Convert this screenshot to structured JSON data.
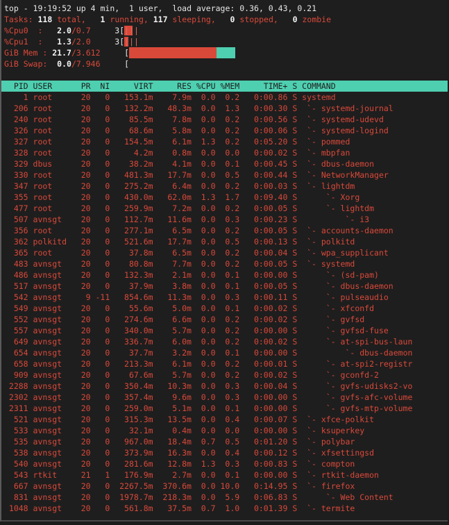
{
  "summary": {
    "uptime_line": "top - 19:19:52 up 4 min,  1 user,  load average: 0.36, 0.43, 0.21",
    "tasks": {
      "label": "Tasks:",
      "total": "118",
      "total_label": "total,",
      "running": "1",
      "running_label": "running,",
      "sleeping": "117",
      "sleeping_label": "sleeping,",
      "stopped": "0",
      "stopped_label": "stopped,",
      "zombie": "0",
      "zombie_label": "zombie"
    },
    "cpu0": {
      "label": "%Cpu0  :",
      "user": "2.0",
      "sys": "/0.7",
      "bar_prefix": "3[",
      "bar_text": "|||"
    },
    "cpu1": {
      "label": "%Cpu1  :",
      "user": "1.3",
      "sys": "/2.0",
      "bar_prefix": "3[",
      "bar_text": "|||"
    },
    "mem": {
      "label": "GiB Mem :",
      "used": "21.7",
      "total": "/3.612",
      "bar_prefix": "[",
      "used_pct": 82,
      "buffers_pct": 18
    },
    "swap": {
      "label": "GiB Swap:",
      "used": "0.0",
      "total": "/7.946",
      "bar_prefix": "["
    }
  },
  "colors": {
    "accent": "#4ecfb0",
    "text_red": "#d9493a",
    "background": "#1e1e1e"
  },
  "columns": [
    "PID",
    "USER",
    "PR",
    "NI",
    "VIRT",
    "RES",
    "%CPU",
    "%MEM",
    "TIME+",
    "S",
    "COMMAND"
  ],
  "processes": [
    [
      "1",
      "root",
      "20",
      "0",
      "153.1m",
      "7.9m",
      "0.0",
      "0.2",
      "0:00.86",
      "S",
      "systemd",
      0
    ],
    [
      "206",
      "root",
      "20",
      "0",
      "132.2m",
      "48.3m",
      "0.0",
      "1.3",
      "0:00.30",
      "S",
      "`- systemd-journal",
      1
    ],
    [
      "240",
      "root",
      "20",
      "0",
      "85.5m",
      "7.8m",
      "0.0",
      "0.2",
      "0:00.56",
      "S",
      "`- systemd-udevd",
      1
    ],
    [
      "326",
      "root",
      "20",
      "0",
      "68.6m",
      "5.8m",
      "0.0",
      "0.2",
      "0:00.06",
      "S",
      "`- systemd-logind",
      1
    ],
    [
      "327",
      "root",
      "20",
      "0",
      "154.5m",
      "6.1m",
      "1.3",
      "0.2",
      "0:05.20",
      "S",
      "`- pommed",
      1
    ],
    [
      "328",
      "root",
      "20",
      "0",
      "4.2m",
      "0.8m",
      "0.0",
      "0.0",
      "0:00.02",
      "S",
      "`- mbpfan",
      1
    ],
    [
      "329",
      "dbus",
      "20",
      "0",
      "38.2m",
      "4.1m",
      "0.0",
      "0.1",
      "0:00.45",
      "S",
      "`- dbus-daemon",
      1
    ],
    [
      "330",
      "root",
      "20",
      "0",
      "481.3m",
      "17.7m",
      "0.0",
      "0.5",
      "0:00.44",
      "S",
      "`- NetworkManager",
      1
    ],
    [
      "347",
      "root",
      "20",
      "0",
      "275.2m",
      "6.4m",
      "0.0",
      "0.2",
      "0:00.03",
      "S",
      "`- lightdm",
      1
    ],
    [
      "355",
      "root",
      "20",
      "0",
      "430.0m",
      "62.0m",
      "1.3",
      "1.7",
      "0:09.40",
      "S",
      "`- Xorg",
      2
    ],
    [
      "477",
      "root",
      "20",
      "0",
      "259.9m",
      "7.2m",
      "0.0",
      "0.2",
      "0:00.05",
      "S",
      "`- lightdm",
      2
    ],
    [
      "507",
      "avnsgt",
      "20",
      "0",
      "112.7m",
      "11.6m",
      "0.0",
      "0.3",
      "0:00.23",
      "S",
      "`- i3",
      3
    ],
    [
      "356",
      "root",
      "20",
      "0",
      "277.1m",
      "6.5m",
      "0.0",
      "0.2",
      "0:00.05",
      "S",
      "`- accounts-daemon",
      1
    ],
    [
      "362",
      "polkitd",
      "20",
      "0",
      "521.6m",
      "17.7m",
      "0.0",
      "0.5",
      "0:00.13",
      "S",
      "`- polkitd",
      1
    ],
    [
      "365",
      "root",
      "20",
      "0",
      "37.8m",
      "6.5m",
      "0.0",
      "0.2",
      "0:00.04",
      "S",
      "`- wpa_supplicant",
      1
    ],
    [
      "483",
      "avnsgt",
      "20",
      "0",
      "80.8m",
      "7.7m",
      "0.0",
      "0.2",
      "0:00.05",
      "S",
      "`- systemd",
      1
    ],
    [
      "486",
      "avnsgt",
      "20",
      "0",
      "132.3m",
      "2.1m",
      "0.0",
      "0.1",
      "0:00.00",
      "S",
      "`- (sd-pam)",
      2
    ],
    [
      "517",
      "avnsgt",
      "20",
      "0",
      "37.9m",
      "3.8m",
      "0.0",
      "0.1",
      "0:00.05",
      "S",
      "`- dbus-daemon",
      2
    ],
    [
      "542",
      "avnsgt",
      "9",
      "-11",
      "854.6m",
      "11.3m",
      "0.0",
      "0.3",
      "0:00.11",
      "S",
      "`- pulseaudio",
      2
    ],
    [
      "549",
      "avnsgt",
      "20",
      "0",
      "55.6m",
      "5.0m",
      "0.0",
      "0.1",
      "0:00.02",
      "S",
      "`- xfconfd",
      2
    ],
    [
      "552",
      "avnsgt",
      "20",
      "0",
      "274.6m",
      "6.6m",
      "0.0",
      "0.2",
      "0:00.02",
      "S",
      "`- gvfsd",
      2
    ],
    [
      "557",
      "avnsgt",
      "20",
      "0",
      "340.0m",
      "5.7m",
      "0.0",
      "0.2",
      "0:00.00",
      "S",
      "`- gvfsd-fuse",
      2
    ],
    [
      "649",
      "avnsgt",
      "20",
      "0",
      "336.7m",
      "6.0m",
      "0.0",
      "0.2",
      "0:00.02",
      "S",
      "`- at-spi-bus-laun",
      2
    ],
    [
      "654",
      "avnsgt",
      "20",
      "0",
      "37.7m",
      "3.2m",
      "0.0",
      "0.1",
      "0:00.00",
      "S",
      "`- dbus-daemon",
      3
    ],
    [
      "658",
      "avnsgt",
      "20",
      "0",
      "213.3m",
      "6.1m",
      "0.0",
      "0.2",
      "0:00.01",
      "S",
      "`- at-spi2-registr",
      2
    ],
    [
      "909",
      "avnsgt",
      "20",
      "0",
      "67.6m",
      "5.7m",
      "0.0",
      "0.2",
      "0:00.02",
      "S",
      "`- gconfd-2",
      2
    ],
    [
      "2288",
      "avnsgt",
      "20",
      "0",
      "350.4m",
      "10.3m",
      "0.0",
      "0.3",
      "0:00.04",
      "S",
      "`- gvfs-udisks2-vo",
      2
    ],
    [
      "2302",
      "avnsgt",
      "20",
      "0",
      "357.4m",
      "9.6m",
      "0.0",
      "0.3",
      "0:00.00",
      "S",
      "`- gvfs-afc-volume",
      2
    ],
    [
      "2311",
      "avnsgt",
      "20",
      "0",
      "259.0m",
      "5.1m",
      "0.0",
      "0.1",
      "0:00.00",
      "S",
      "`- gvfs-mtp-volume",
      2
    ],
    [
      "521",
      "avnsgt",
      "20",
      "0",
      "315.3m",
      "13.5m",
      "0.0",
      "0.4",
      "0:00.07",
      "S",
      "`- xfce-polkit",
      1
    ],
    [
      "533",
      "avnsgt",
      "20",
      "0",
      "32.1m",
      "0.4m",
      "0.0",
      "0.0",
      "0:00.00",
      "S",
      "`- ksuperkey",
      1
    ],
    [
      "535",
      "avnsgt",
      "20",
      "0",
      "967.0m",
      "18.4m",
      "0.7",
      "0.5",
      "0:01.20",
      "S",
      "`- polybar",
      1
    ],
    [
      "538",
      "avnsgt",
      "20",
      "0",
      "373.9m",
      "16.3m",
      "0.0",
      "0.4",
      "0:00.12",
      "S",
      "`- xfsettingsd",
      1
    ],
    [
      "540",
      "avnsgt",
      "20",
      "0",
      "281.6m",
      "12.8m",
      "1.3",
      "0.3",
      "0:00.83",
      "S",
      "`- compton",
      1
    ],
    [
      "543",
      "rtkit",
      "21",
      "1",
      "176.9m",
      "2.7m",
      "0.0",
      "0.1",
      "0:00.00",
      "S",
      "`- rtkit-daemon",
      1
    ],
    [
      "667",
      "avnsgt",
      "20",
      "0",
      "2267.5m",
      "370.6m",
      "0.0",
      "10.0",
      "0:14.95",
      "S",
      "`- firefox",
      1
    ],
    [
      "831",
      "avnsgt",
      "20",
      "0",
      "1978.7m",
      "218.3m",
      "0.0",
      "5.9",
      "0:06.83",
      "S",
      "`- Web Content",
      2
    ],
    [
      "1048",
      "avnsgt",
      "20",
      "0",
      "561.8m",
      "37.5m",
      "0.7",
      "1.0",
      "0:01.39",
      "S",
      "`- termite",
      1
    ]
  ]
}
